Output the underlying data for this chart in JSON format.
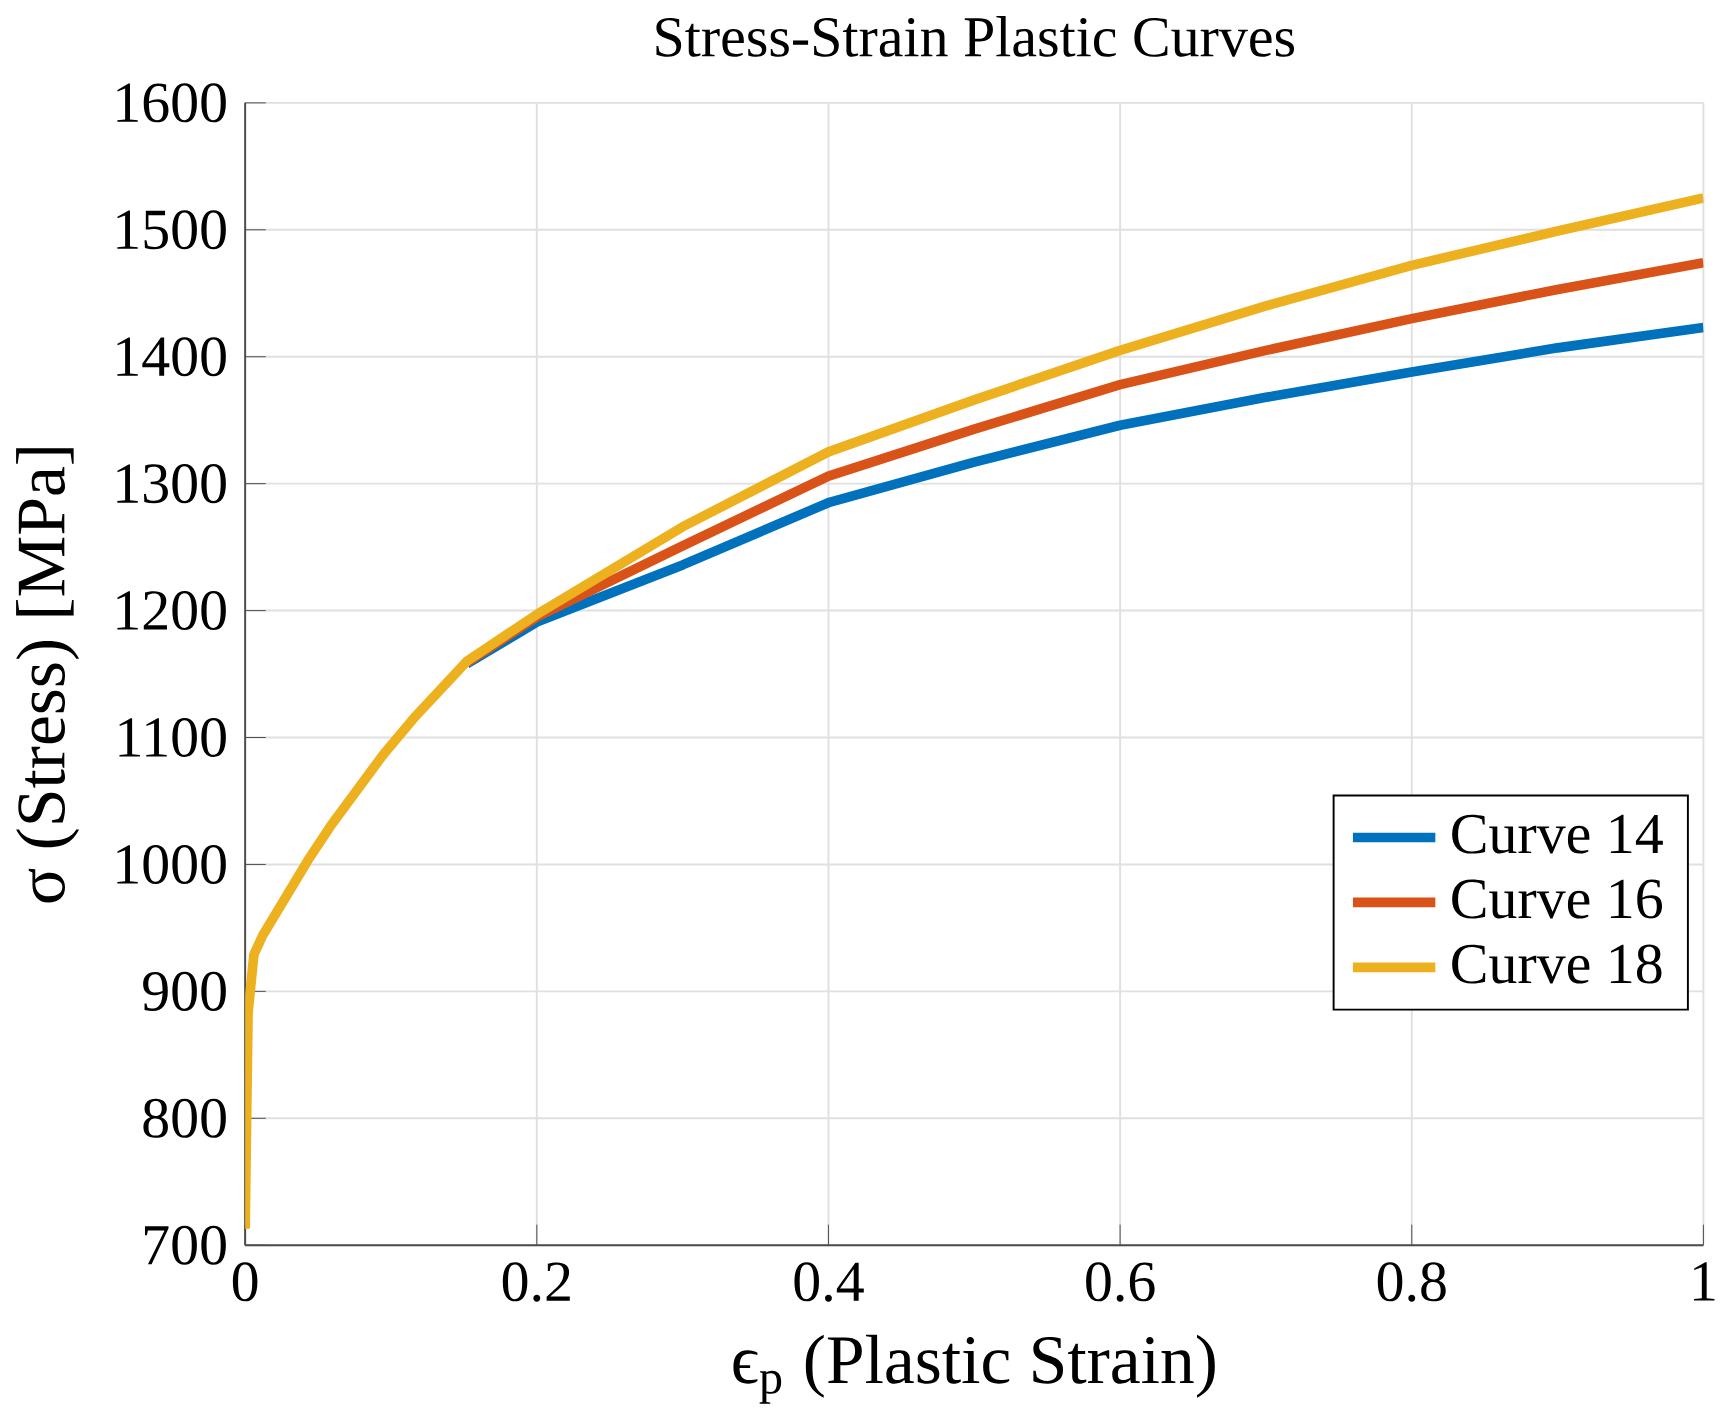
{
  "chart_data": {
    "type": "line",
    "title": "Stress-Strain Plastic Curves",
    "xlabel": "ϵ$_{p}$ (Plastic Strain)",
    "ylabel": "σ (Stress) [MPa]",
    "xlim": [
      0,
      1
    ],
    "ylim": [
      700,
      1600
    ],
    "xticks": [
      0,
      0.2,
      0.4,
      0.6,
      0.8,
      1
    ],
    "yticks": [
      700,
      800,
      900,
      1000,
      1100,
      1200,
      1300,
      1400,
      1500,
      1600
    ],
    "grid": true,
    "legend": "right",
    "line_style": "solid",
    "series": [
      {
        "name": "Curve 14",
        "color": "#0072bd",
        "x": [
          0.152,
          0.2,
          0.3,
          0.4,
          0.5,
          0.6,
          0.7,
          0.8,
          0.9,
          1
        ],
        "values": [
          1158,
          1191,
          1236,
          1285,
          1317,
          1346,
          1368,
          1388,
          1407,
          1423
        ]
      },
      {
        "name": "Curve 16",
        "color": "#d95319",
        "x": [
          0.152,
          0.2,
          0.3,
          0.4,
          0.5,
          0.6,
          0.7,
          0.8,
          0.9,
          1
        ],
        "values": [
          1159,
          1195,
          1251,
          1306,
          1343,
          1378,
          1405,
          1430,
          1453,
          1474
        ]
      },
      {
        "name": "Curve 18",
        "color": "#edb120",
        "x": [
          0,
          0.002,
          0.006,
          0.012,
          0.044,
          0.059,
          0.095,
          0.117,
          0.152,
          0.2,
          0.3,
          0.4,
          0.5,
          0.6,
          0.7,
          0.8,
          0.9,
          1
        ],
        "values": [
          713,
          883,
          929,
          944,
          1005,
          1031,
          1087,
          1117,
          1160,
          1197,
          1266,
          1325,
          1366,
          1405,
          1440,
          1472,
          1499,
          1525
        ]
      }
    ]
  }
}
